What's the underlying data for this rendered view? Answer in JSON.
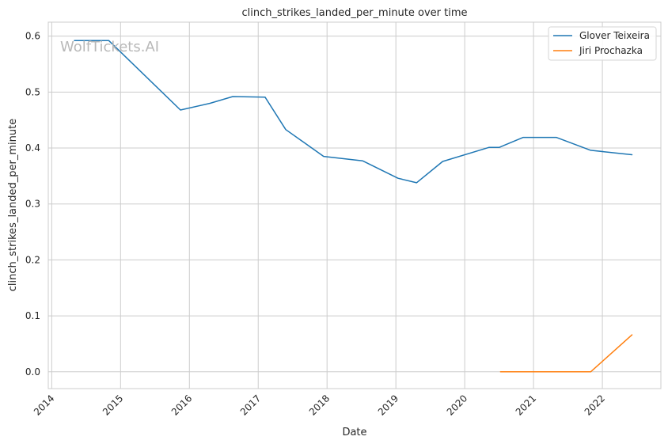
{
  "chart_data": {
    "type": "line",
    "title": "clinch_strikes_landed_per_minute over time",
    "xlabel": "Date",
    "ylabel": "clinch_strikes_landed_per_minute",
    "watermark": "WolfTickets.AI",
    "x_ticks": [
      "2014",
      "2015",
      "2016",
      "2017",
      "2018",
      "2019",
      "2020",
      "2021",
      "2022"
    ],
    "y_ticks": [
      "0.0",
      "0.1",
      "0.2",
      "0.3",
      "0.4",
      "0.5",
      "0.6"
    ],
    "ylim": [
      -0.03,
      0.625
    ],
    "xlim": [
      2013.95,
      2022.85
    ],
    "grid": true,
    "legend_position": "top-right",
    "series": [
      {
        "name": "Glover Teixeira",
        "color": "#1f77b4",
        "points": [
          [
            2014.33,
            0.592
          ],
          [
            2014.83,
            0.592
          ],
          [
            2015.87,
            0.468
          ],
          [
            2016.3,
            0.48
          ],
          [
            2016.63,
            0.492
          ],
          [
            2017.1,
            0.491
          ],
          [
            2017.4,
            0.433
          ],
          [
            2017.95,
            0.385
          ],
          [
            2018.52,
            0.377
          ],
          [
            2019.03,
            0.346
          ],
          [
            2019.3,
            0.338
          ],
          [
            2019.68,
            0.376
          ],
          [
            2020.35,
            0.401
          ],
          [
            2020.5,
            0.401
          ],
          [
            2020.85,
            0.419
          ],
          [
            2021.33,
            0.419
          ],
          [
            2021.83,
            0.396
          ],
          [
            2022.43,
            0.388
          ]
        ]
      },
      {
        "name": "Jiri Prochazka",
        "color": "#ff7f0e",
        "points": [
          [
            2020.52,
            0.0
          ],
          [
            2021.83,
            0.0
          ],
          [
            2022.43,
            0.066
          ]
        ]
      }
    ]
  }
}
